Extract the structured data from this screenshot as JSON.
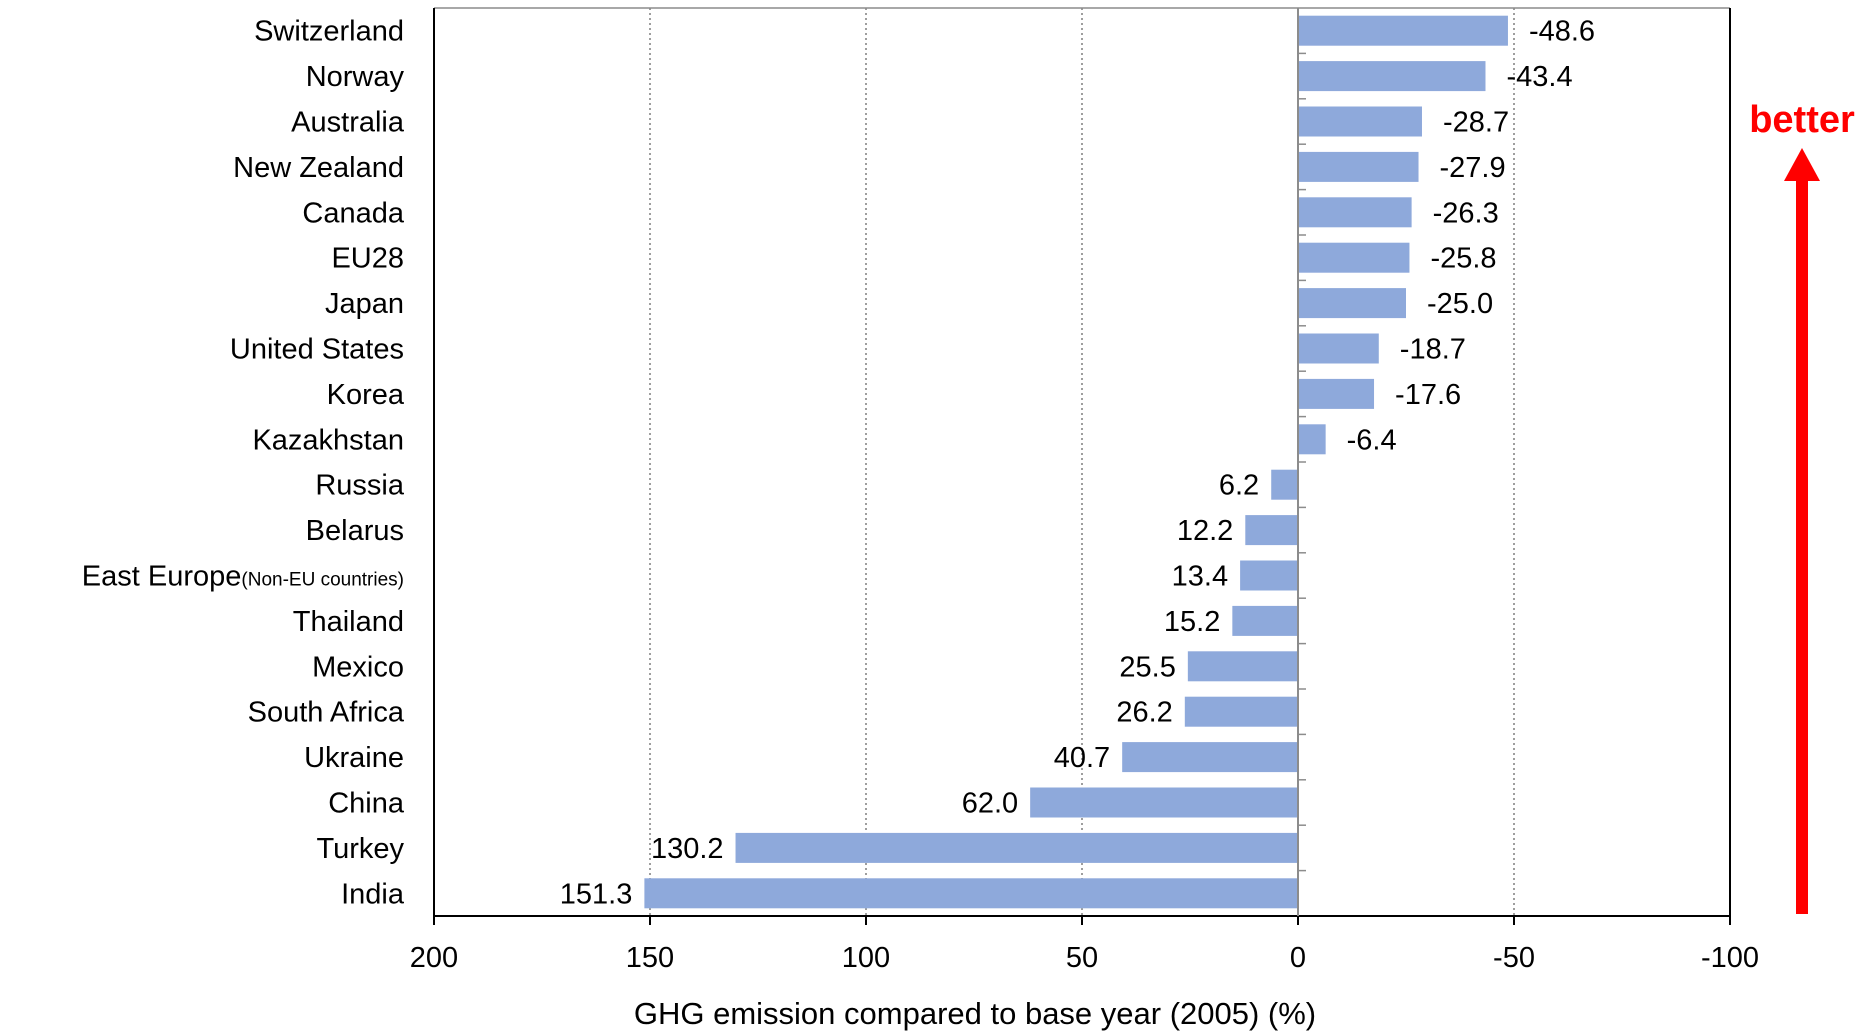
{
  "chart_data": {
    "type": "bar",
    "orientation": "horizontal",
    "categories": [
      "Switzerland",
      "Norway",
      "Australia",
      "New Zealand",
      "Canada",
      "EU28",
      "Japan",
      "United States",
      "Korea",
      "Kazakhstan",
      "Russia",
      "Belarus",
      "East Europe",
      "Thailand",
      "Mexico",
      "South Africa",
      "Ukraine",
      "China",
      "Turkey",
      "India"
    ],
    "category_suffixes": {
      "East Europe": "(Non-EU countries)"
    },
    "values": [
      -48.6,
      -43.4,
      -28.7,
      -27.9,
      -26.3,
      -25.8,
      -25.0,
      -18.7,
      -17.6,
      -6.4,
      6.2,
      12.2,
      13.4,
      15.2,
      25.5,
      26.2,
      40.7,
      62.0,
      130.2,
      151.3
    ],
    "value_labels": [
      "-48.6",
      "-43.4",
      "-28.7",
      "-27.9",
      "-26.3",
      "-25.8",
      "-25.0",
      "-18.7",
      "-17.6",
      "-6.4",
      "6.2",
      "12.2",
      "13.4",
      "15.2",
      "25.5",
      "26.2",
      "40.7",
      "62.0",
      "130.2",
      "151.3"
    ],
    "xlabel": "GHG emission compared to base year (2005) (%)",
    "xlim": [
      200,
      -100
    ],
    "x_reversed": true,
    "xticks": [
      200,
      150,
      100,
      50,
      0,
      -50,
      -100
    ],
    "xtick_labels": [
      "200",
      "150",
      "100",
      "50",
      "0",
      "-50",
      "-100"
    ],
    "grid": "vertical-dotted",
    "bar_color": "#8EA9DB",
    "annotation": {
      "text": "better",
      "color": "#FF0000",
      "direction": "up-arrow"
    }
  }
}
